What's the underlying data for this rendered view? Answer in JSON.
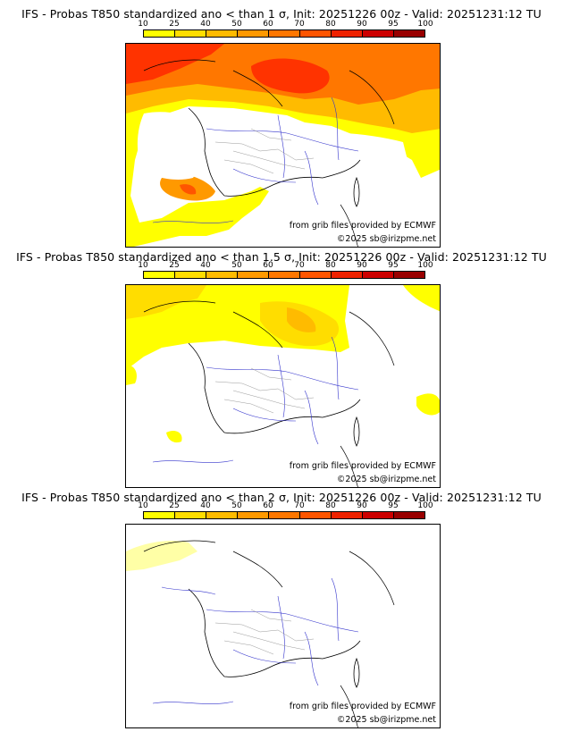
{
  "legend": {
    "ticks": [
      "10",
      "25",
      "40",
      "50",
      "60",
      "70",
      "80",
      "90",
      "95",
      "100"
    ],
    "colors": [
      "#ffff00",
      "#ffdd00",
      "#ffbb00",
      "#ff9900",
      "#ff7700",
      "#ff5500",
      "#ee2200",
      "#cc0000",
      "#990000",
      "#550000"
    ]
  },
  "panels": [
    {
      "title": "IFS - Probas T850  standardized ano < than 1 σ, Init: 20251226 00z - Valid: 20251231:12 TU",
      "credit_source": "from grib files provided by ECMWF",
      "credit_copyright": "©2025 sb@irizpme.net"
    },
    {
      "title": "IFS - Probas T850  standardized ano < than 1.5 σ, Init: 20251226 00z - Valid: 20251231:12 TU",
      "credit_source": "from grib files provided by ECMWF",
      "credit_copyright": "©2025 sb@irizpme.net"
    },
    {
      "title": "IFS - Probas T850  standardized ano < than 2 σ, Init: 20251226 00z - Valid: 20251231:12 TU",
      "credit_source": "from grib files provided by ECMWF",
      "credit_copyright": "©2025 sb@irizpme.net"
    }
  ]
}
